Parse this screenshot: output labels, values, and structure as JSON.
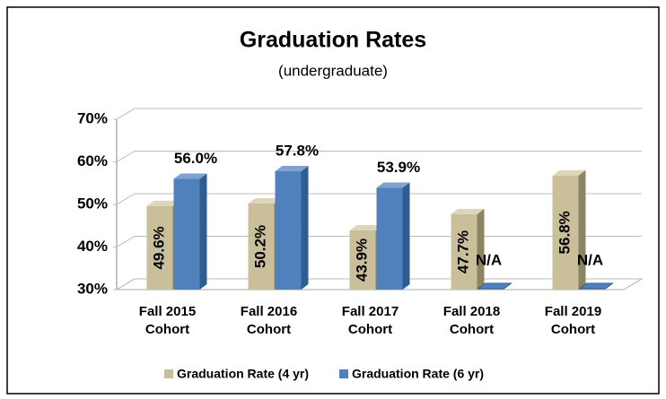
{
  "chart_data": {
    "type": "bar3d",
    "title": "Graduation Rates",
    "subtitle": "(undergraduate)",
    "categories": [
      "Fall 2015 Cohort",
      "Fall 2016 Cohort",
      "Fall 2017 Cohort",
      "Fall 2018 Cohort",
      "Fall 2019 Cohort"
    ],
    "series": [
      {
        "name": "Graduation Rate (4 yr)",
        "color": "#c9bf9b",
        "values": [
          49.6,
          50.2,
          43.9,
          47.7,
          56.8
        ],
        "value_labels": [
          "49.6%",
          "50.2%",
          "43.9%",
          "47.7%",
          "56.8%"
        ]
      },
      {
        "name": "Graduation Rate (6 yr)",
        "color": "#4f81bd",
        "values": [
          56.0,
          57.8,
          53.9,
          null,
          null
        ],
        "value_labels": [
          "56.0%",
          "57.8%",
          "53.9%",
          "N/A",
          "N/A"
        ]
      }
    ],
    "ylim": [
      30,
      70
    ],
    "yticks": [
      {
        "value": 30,
        "label": "30%"
      },
      {
        "value": 40,
        "label": "40%"
      },
      {
        "value": 50,
        "label": "50%"
      },
      {
        "value": 60,
        "label": "60%"
      },
      {
        "value": 70,
        "label": "70%"
      }
    ],
    "grid": true,
    "legend": "bottom"
  }
}
